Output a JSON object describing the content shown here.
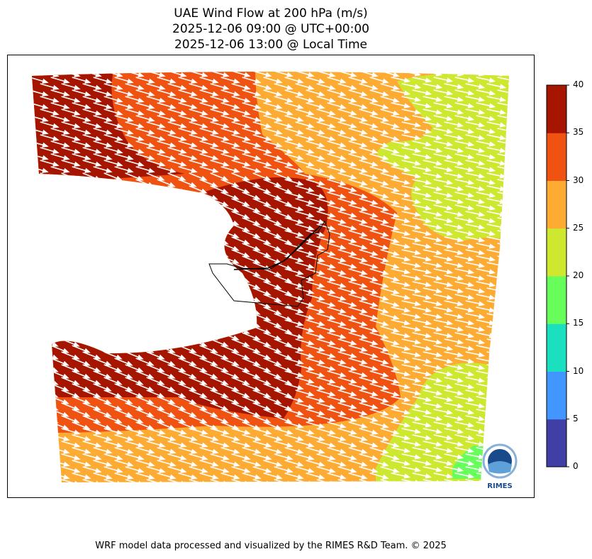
{
  "title": {
    "line1": "UAE Wind Flow at 200 hPa (m/s)",
    "line2": "2025-12-06 09:00 @ UTC+00:00",
    "line3": "2025-12-06 13:00 @ Local Time"
  },
  "colorbar": {
    "ticks": [
      "0",
      "5",
      "10",
      "15",
      "20",
      "25",
      "30",
      "35",
      "40"
    ],
    "levels": [
      {
        "range": [
          0,
          5
        ],
        "color": "#3f3fa5"
      },
      {
        "range": [
          5,
          10
        ],
        "color": "#4196ff"
      },
      {
        "range": [
          10,
          15
        ],
        "color": "#1be0bf"
      },
      {
        "range": [
          15,
          20
        ],
        "color": "#67fd5a"
      },
      {
        "range": [
          20,
          25
        ],
        "color": "#cde82e"
      },
      {
        "range": [
          25,
          30
        ],
        "color": "#fdab33"
      },
      {
        "range": [
          30,
          35
        ],
        "color": "#f05212"
      },
      {
        "range": [
          35,
          40
        ],
        "color": "#a51500"
      }
    ]
  },
  "logo": {
    "text": "RIMES"
  },
  "footer": "WRF model data processed and visualized by the RIMES R&D Team. © 2025"
}
